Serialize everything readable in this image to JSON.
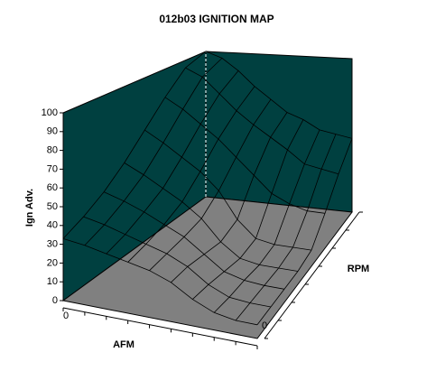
{
  "chart_data": {
    "type": "surface",
    "title": "012b03 IGNITION MAP",
    "z_label": "Ign Adv.",
    "x_label": "AFM",
    "y_label": "RPM",
    "zlim": [
      0,
      100
    ],
    "zticks": [
      0,
      10,
      20,
      30,
      40,
      50,
      60,
      70,
      80,
      90,
      100
    ],
    "xticks": [
      0
    ],
    "yticks": [
      0
    ],
    "wall_color": "#004040",
    "floor_color": "#808080",
    "line_color": "#000000",
    "z": [
      [
        33,
        32,
        30,
        28,
        26,
        22,
        15,
        10,
        8,
        8
      ],
      [
        38,
        36,
        33,
        30,
        27,
        22,
        14,
        9,
        8,
        8
      ],
      [
        45,
        42,
        38,
        33,
        28,
        20,
        12,
        9,
        8,
        8
      ],
      [
        55,
        50,
        44,
        38,
        30,
        18,
        10,
        8,
        8,
        8
      ],
      [
        68,
        62,
        55,
        48,
        38,
        22,
        12,
        10,
        10,
        10
      ],
      [
        82,
        76,
        68,
        60,
        50,
        40,
        30,
        25,
        22,
        22
      ],
      [
        95,
        90,
        80,
        70,
        62,
        55,
        48,
        40,
        38,
        36
      ],
      [
        100,
        96,
        88,
        78,
        70,
        62,
        58,
        52,
        50,
        48
      ]
    ]
  }
}
